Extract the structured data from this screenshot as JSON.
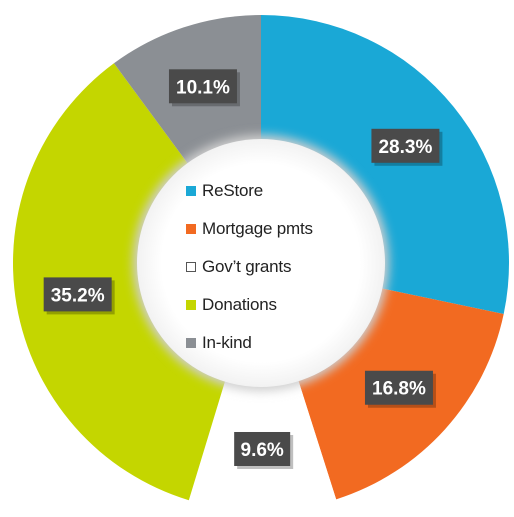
{
  "chart_data": {
    "type": "pie",
    "style": "donut",
    "categories": [
      "ReStore",
      "Mortgage pmts",
      "Gov't grants",
      "Donations",
      "In-kind"
    ],
    "values": [
      28.3,
      16.8,
      9.6,
      35.2,
      10.1
    ],
    "value_labels": [
      "28.3%",
      "16.8%",
      "9.6%",
      "35.2%",
      "10.1%"
    ],
    "colors": [
      "#1aa8d6",
      "#f26a21",
      "#ffffff",
      "#c4d600",
      "#8b8f94"
    ],
    "legend_labels": [
      "ReStore",
      "Mortgage pmts",
      "Gov’t grants",
      "Donations",
      "In-kind"
    ],
    "legend_position": "center",
    "start_angle_deg": 0,
    "direction": "clockwise"
  }
}
